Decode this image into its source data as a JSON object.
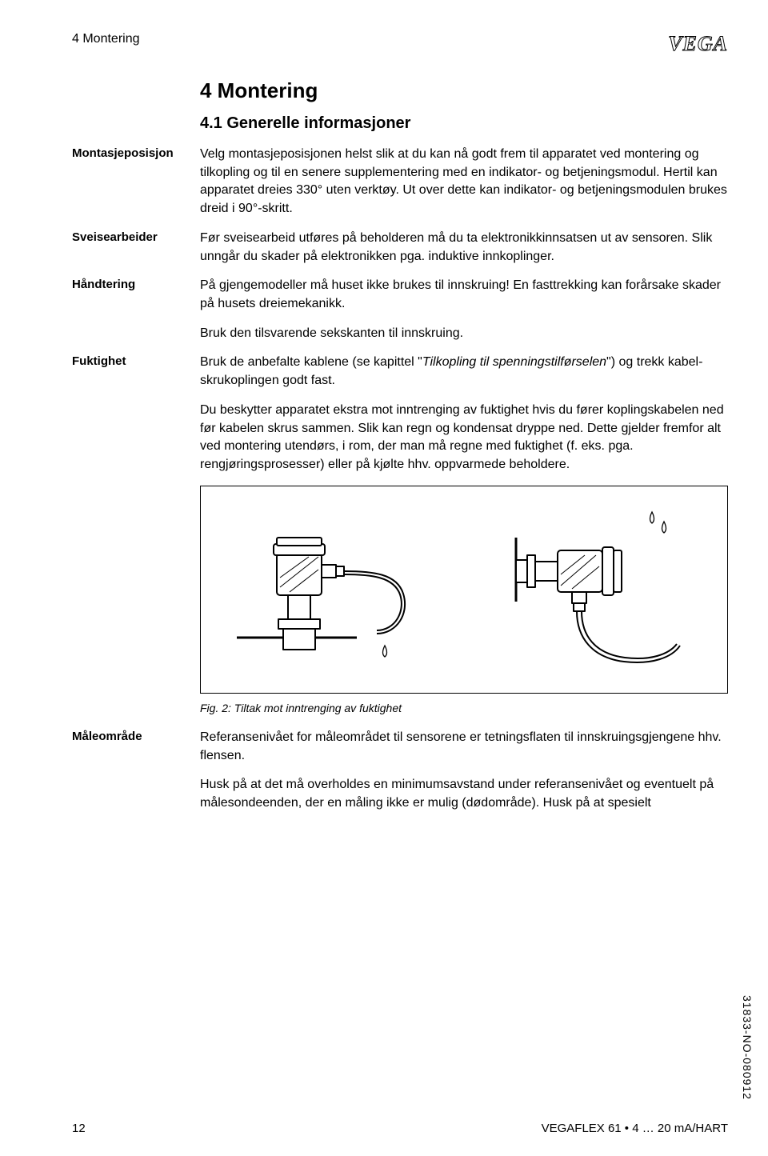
{
  "header": {
    "running_title": "4  Montering",
    "logo_text": "VEGA"
  },
  "section": {
    "heading": "4  Montering",
    "subheading": "4.1  Generelle informasjoner"
  },
  "items": [
    {
      "label": "Montasjeposisjon",
      "paragraphs": [
        "Velg montasjeposisjonen helst slik at du kan nå godt frem til apparatet ved montering og tilkopling og til en senere supplementering med en indikator- og betjeningsmodul. Hertil kan apparatet dreies 330° uten verktøy. Ut over dette kan indikator- og betjeningsmodulen brukes dreid i 90°-skritt."
      ]
    },
    {
      "label": "Sveisearbeider",
      "paragraphs": [
        "Før sveisearbeid utføres på beholderen må du ta elektronikkinnsatsen ut av sensoren. Slik unngår du skader på elektronikken pga. induktive innkoplinger."
      ]
    },
    {
      "label": "Håndtering",
      "paragraphs": [
        "På gjengemodeller må huset ikke brukes til innskruing! En fasttrekking kan forårsake skader på husets dreiemekanikk.",
        "Bruk den tilsvarende sekskanten til innskruing."
      ]
    },
    {
      "label": "Fuktighet",
      "paragraphs_html": [
        "Bruk de anbefalte kablene (se kapittel \"<em>Tilkopling til spenningstilførselen</em>\") og trekk kabel-skrukoplingen godt fast.",
        "Du beskytter apparatet ekstra mot inntrenging av fuktighet hvis du fører koplingskabelen ned før kabelen skrus sammen. Slik kan regn og kondensat dryppe ned. Dette gjelder fremfor alt ved montering utendørs, i rom, der man må regne med fuktighet (f. eks. pga. rengjøringsprosesser) eller på kjølte hhv. oppvarmede beholdere."
      ]
    }
  ],
  "figure": {
    "caption": "Fig. 2: Tiltak mot inntrenging av fuktighet"
  },
  "after_figure": {
    "label": "Måleområde",
    "paragraphs": [
      "Referansenivået for måleområdet til sensorene er tetningsflaten til innskruingsgjengene hhv. flensen.",
      "Husk på at det må overholdes en minimumsavstand under referansenivået og eventuelt på målesondeenden, der en måling ikke er mulig (dødområde). Husk på at spesielt"
    ]
  },
  "footer": {
    "page_number": "12",
    "doc_ref": "VEGAFLEX 61 • 4 … 20 mA/HART",
    "side_id": "31833-NO-080912"
  }
}
